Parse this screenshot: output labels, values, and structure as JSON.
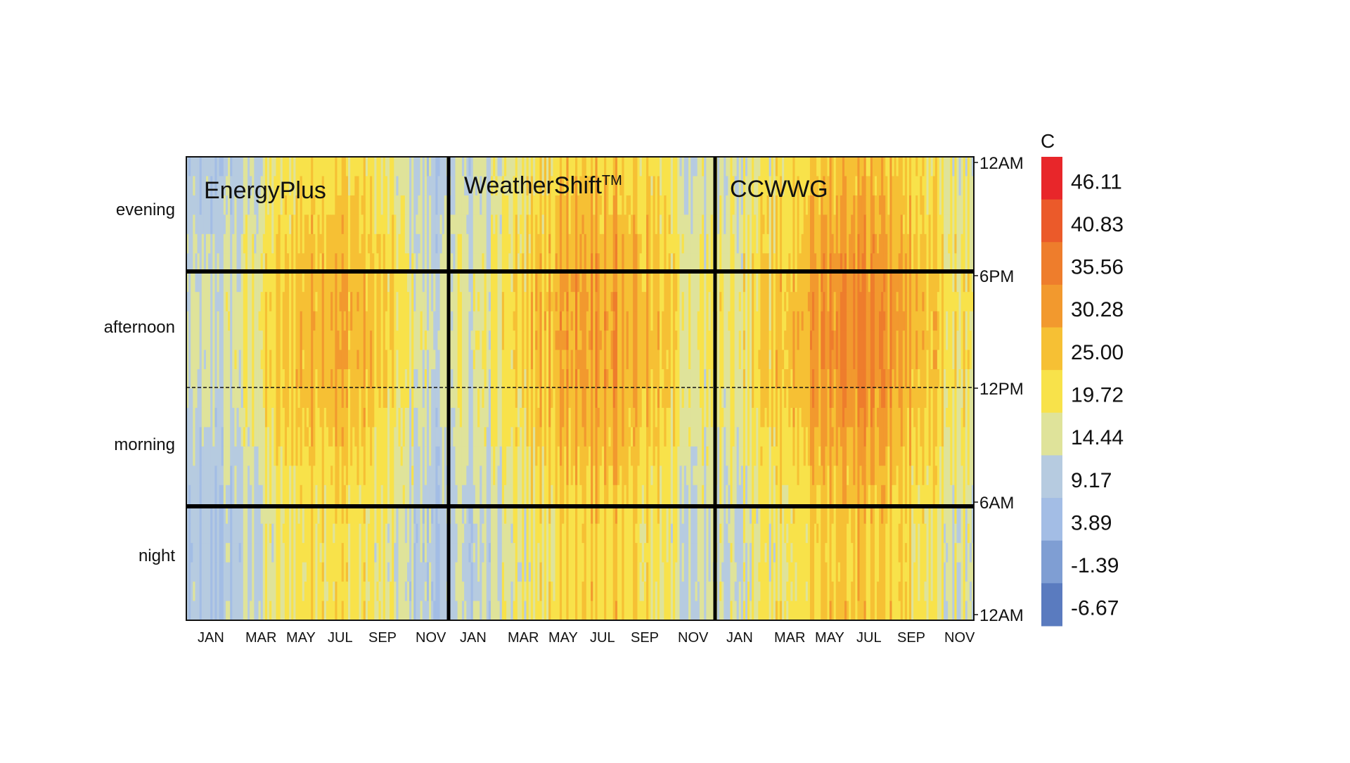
{
  "chart_data": {
    "type": "heatmap",
    "colorbar": {
      "unit": "C",
      "levels": [
        "46.11",
        "40.83",
        "35.56",
        "30.28",
        "25.00",
        "19.72",
        "14.44",
        "9.17",
        "3.89",
        "-1.39",
        "-6.67"
      ],
      "colors": [
        "#e8262a",
        "#eb5a2a",
        "#ee7d2c",
        "#f2992e",
        "#f6c034",
        "#f8e24a",
        "#dfe39a",
        "#b6cbe0",
        "#a3bde5",
        "#7f9ed3",
        "#5a7bbf"
      ]
    },
    "panels": [
      {
        "name": "EnergyPlus",
        "title_parts": [
          "EnergyPlus"
        ],
        "peak_afternoon_c": 32,
        "summer_night_c": 24,
        "winter_c": 10
      },
      {
        "name": "WeatherShiftTM",
        "title_parts": [
          "WeatherShift",
          "TM"
        ],
        "peak_afternoon_c": 35,
        "summer_night_c": 27,
        "winter_c": 14
      },
      {
        "name": "CCWWG",
        "title_parts": [
          "CCWWG"
        ],
        "peak_afternoon_c": 38,
        "summer_night_c": 28,
        "winter_c": 17
      }
    ],
    "x_tick_labels": [
      "JAN",
      "MAR",
      "MAY",
      "JUL",
      "SEP",
      "NOV"
    ],
    "period_labels": [
      "evening",
      "afternoon",
      "morning",
      "night"
    ],
    "y_tick_labels": [
      "12AM",
      "6PM",
      "12PM",
      "6AM",
      "12AM"
    ],
    "x_axis": "month of year",
    "y_axis": "hour of day"
  }
}
